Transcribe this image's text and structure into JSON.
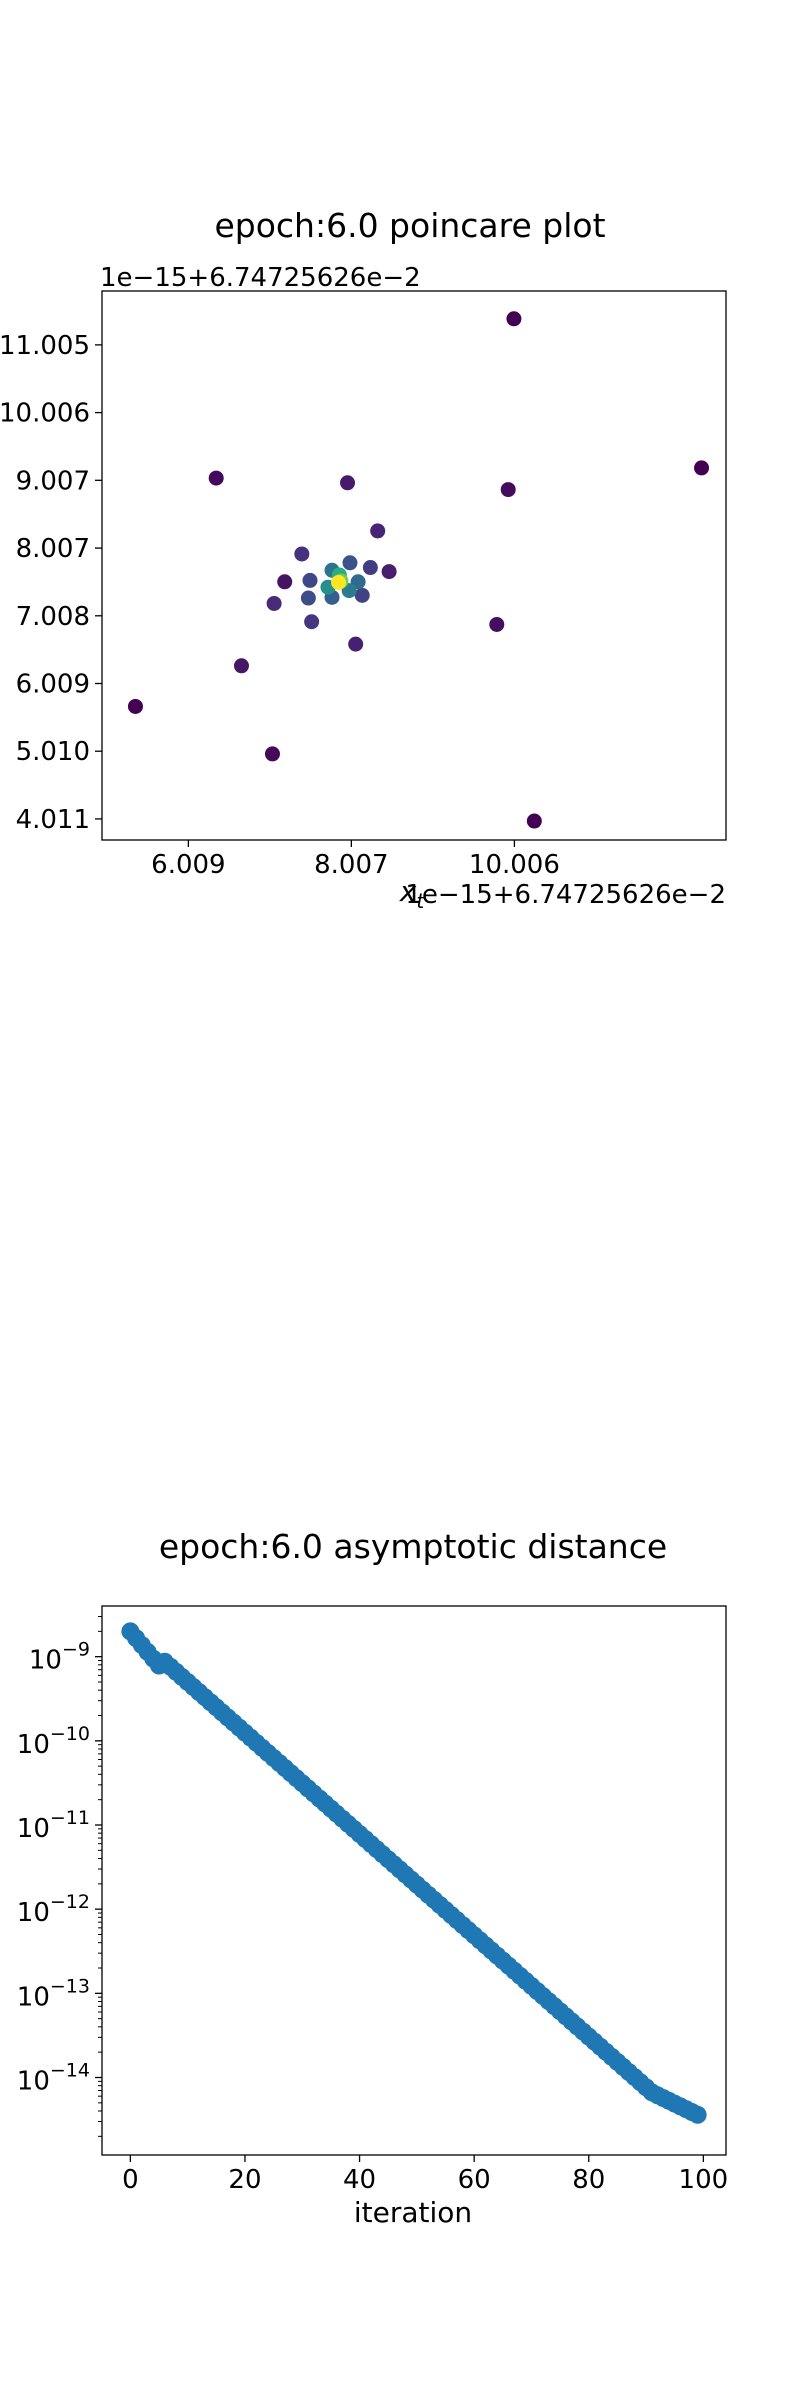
{
  "chart_data": [
    {
      "type": "scatter",
      "title": "epoch:6.0 poincare plot",
      "xlabel": "x_t",
      "ylabel": "",
      "x_offset_label": "1e−15+6.74725626e−2",
      "y_offset_label": "1e−15+6.74725626e−2",
      "xlim": [
        4.95,
        12.6
      ],
      "ylim": [
        3.7,
        11.8
      ],
      "x_ticks": [
        {
          "value": 6.009,
          "label": "6.009"
        },
        {
          "value": 8.007,
          "label": "8.007"
        },
        {
          "value": 10.006,
          "label": "10.006"
        }
      ],
      "y_ticks": [
        {
          "value": 4.011,
          "label": "4.011"
        },
        {
          "value": 5.01,
          "label": "5.010"
        },
        {
          "value": 6.009,
          "label": "6.009"
        },
        {
          "value": 7.008,
          "label": "7.008"
        },
        {
          "value": 8.007,
          "label": "8.007"
        },
        {
          "value": 9.007,
          "label": "9.007"
        },
        {
          "value": 10.006,
          "label": "10.006"
        },
        {
          "value": 11.005,
          "label": "11.005"
        }
      ],
      "colormap": [
        "#440154",
        "#482878",
        "#3e4989",
        "#31688e",
        "#26828e",
        "#1f9e89",
        "#35b779",
        "#6ece58",
        "#b5de2b",
        "#fde725"
      ],
      "points": [
        {
          "x": 10.0,
          "y": 11.39,
          "c": 0.0
        },
        {
          "x": 10.25,
          "y": 3.98,
          "c": 0.0
        },
        {
          "x": 12.3,
          "y": 9.19,
          "c": 0.0
        },
        {
          "x": 5.36,
          "y": 5.67,
          "c": 0.0
        },
        {
          "x": 6.35,
          "y": 9.04,
          "c": 0.02
        },
        {
          "x": 7.04,
          "y": 4.97,
          "c": 0.02
        },
        {
          "x": 9.93,
          "y": 8.87,
          "c": 0.03
        },
        {
          "x": 9.79,
          "y": 6.88,
          "c": 0.04
        },
        {
          "x": 7.19,
          "y": 7.51,
          "c": 0.05
        },
        {
          "x": 6.66,
          "y": 6.27,
          "c": 0.06
        },
        {
          "x": 7.96,
          "y": 8.97,
          "c": 0.07
        },
        {
          "x": 8.47,
          "y": 7.66,
          "c": 0.08
        },
        {
          "x": 8.06,
          "y": 6.59,
          "c": 0.09
        },
        {
          "x": 8.33,
          "y": 8.26,
          "c": 0.1
        },
        {
          "x": 7.06,
          "y": 7.19,
          "c": 0.12
        },
        {
          "x": 7.4,
          "y": 7.92,
          "c": 0.14
        },
        {
          "x": 7.52,
          "y": 6.92,
          "c": 0.16
        },
        {
          "x": 8.24,
          "y": 7.72,
          "c": 0.18
        },
        {
          "x": 8.14,
          "y": 7.31,
          "c": 0.2
        },
        {
          "x": 7.5,
          "y": 7.53,
          "c": 0.22
        },
        {
          "x": 7.48,
          "y": 7.27,
          "c": 0.24
        },
        {
          "x": 7.99,
          "y": 7.79,
          "c": 0.26
        },
        {
          "x": 7.77,
          "y": 7.28,
          "c": 0.3
        },
        {
          "x": 8.09,
          "y": 7.51,
          "c": 0.34
        },
        {
          "x": 7.77,
          "y": 7.68,
          "c": 0.38
        },
        {
          "x": 7.98,
          "y": 7.38,
          "c": 0.42
        },
        {
          "x": 7.72,
          "y": 7.43,
          "c": 0.5
        },
        {
          "x": 7.86,
          "y": 7.61,
          "c": 0.62
        },
        {
          "x": 7.88,
          "y": 7.52,
          "c": 0.78
        },
        {
          "x": 7.85,
          "y": 7.5,
          "c": 1.0
        }
      ]
    },
    {
      "type": "scatter",
      "title": "epoch:6.0 asymptotic distance",
      "xlabel": "iteration",
      "ylabel": "",
      "yscale": "log",
      "xlim": [
        -4.95,
        103.95
      ],
      "ylim": [
        1.2e-15,
        4e-09
      ],
      "color": "#1f77b4",
      "x_ticks": [
        0,
        20,
        40,
        60,
        80,
        100
      ],
      "y_ticks": [
        {
          "value": 1e-09,
          "base": "10",
          "exp": "−9"
        },
        {
          "value": 1e-10,
          "base": "10",
          "exp": "−10"
        },
        {
          "value": 1e-11,
          "base": "10",
          "exp": "−11"
        },
        {
          "value": 1e-12,
          "base": "10",
          "exp": "−12"
        },
        {
          "value": 1e-13,
          "base": "10",
          "exp": "−13"
        },
        {
          "value": 1e-14,
          "base": "10",
          "exp": "−14"
        }
      ],
      "x_first": 0,
      "x_last": 99,
      "y_first": 2e-09,
      "y_last": 2.2e-15
    }
  ]
}
